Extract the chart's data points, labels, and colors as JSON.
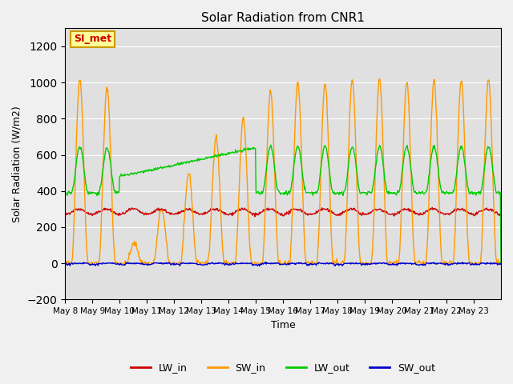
{
  "title": "Solar Radiation from CNR1",
  "xlabel": "Time",
  "ylabel": "Solar Radiation (W/m2)",
  "ylim": [
    -200,
    1300
  ],
  "yticks": [
    -200,
    0,
    200,
    400,
    600,
    800,
    1000,
    1200
  ],
  "num_days": 16,
  "x_labels": [
    "May 8",
    "May 9",
    "May 10",
    "May 11",
    "May 12",
    "May 13",
    "May 14",
    "May 15",
    "May 16",
    "May 17",
    "May 18",
    "May 19",
    "May 20",
    "May 21",
    "May 22",
    "May 23"
  ],
  "legend_labels": [
    "LW_in",
    "SW_in",
    "LW_out",
    "SW_out"
  ],
  "legend_colors": [
    "#cc0000",
    "#ff9900",
    "#00cc00",
    "#0000cc"
  ],
  "annotation_text": "SI_met",
  "annotation_bg": "#ffff99",
  "annotation_border": "#cc9900",
  "annotation_text_color": "#cc0000",
  "background_color": "#e0e0e0",
  "grid_color": "#ffffff",
  "line_lw_in_color": "#cc0000",
  "line_sw_in_color": "#ff9900",
  "line_lw_out_color": "#00cc00",
  "line_sw_out_color": "#0000cc"
}
